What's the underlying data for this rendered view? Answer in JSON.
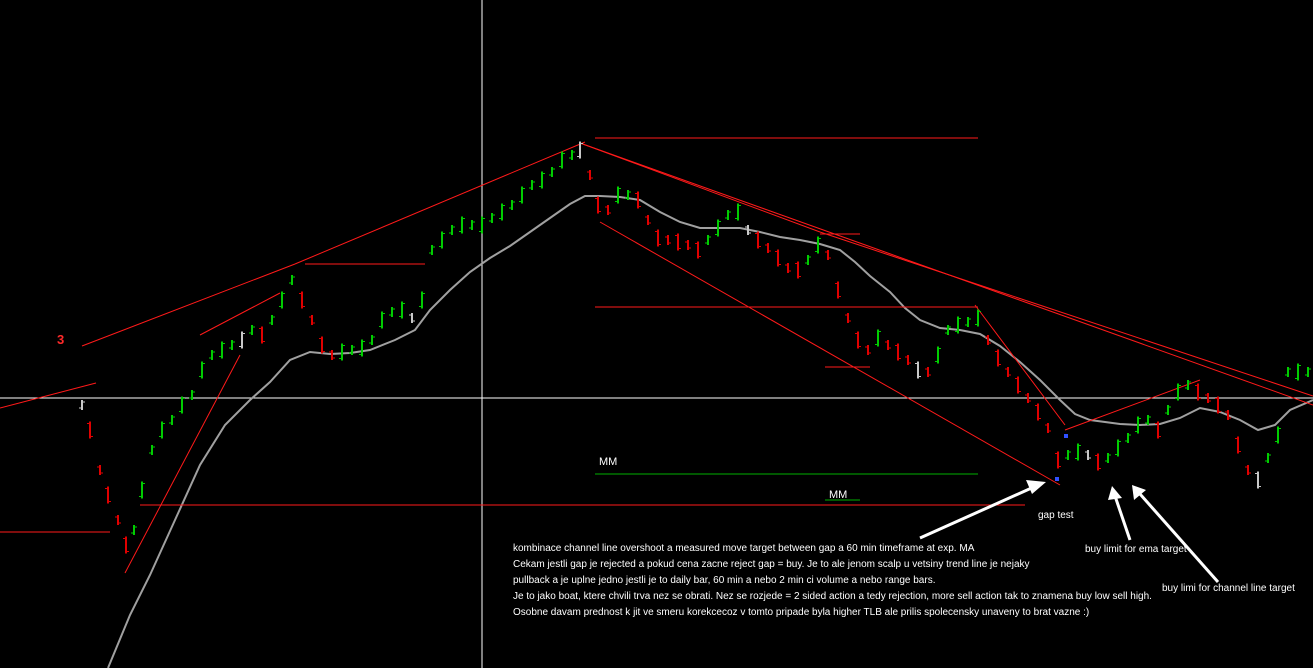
{
  "chart_data": {
    "type": "ohlc",
    "label_3": "3",
    "mm_labels": [
      "MM",
      "MM"
    ],
    "annotations": {
      "gap_test": "gap test",
      "buy_limit_ema": "buy limit  for ema target",
      "buy_limit_channel": "buy limi for channel line target"
    },
    "commentary": [
      "kombinace channel line overshoot a measured move target between gap a 60 min timeframe at exp. MA",
      "Cekam jestli gap je rejected a pokud cena zacne reject gap = buy. Je to ale jenom scalp u vetsiny trend line je nejaky",
      "pullback a je uplne jedno jestli je to daily bar,  60 min a nebo 2 min ci volume a nebo range bars.",
      "Je to jako boat, ktere chvili trva nez se obrati. Nez se rozjede = 2 sided action a tedy rejection, more sell action tak to znamena buy low sell high.",
      "Osobne davam prednost k jit ve smeru korekcecoz v tomto pripade byla higher TLB ale prilis spolecensky unaveny to brat vazne :)"
    ],
    "colors": {
      "bull": "#00cc00",
      "bear": "#e00000",
      "neutral": "#c8c8c8",
      "ema": "#a0a0a0",
      "trendline": "#ff1a1a",
      "mm_line": "#00b000",
      "crosshair": "#ffffff",
      "arrow": "#ffffff"
    }
  }
}
